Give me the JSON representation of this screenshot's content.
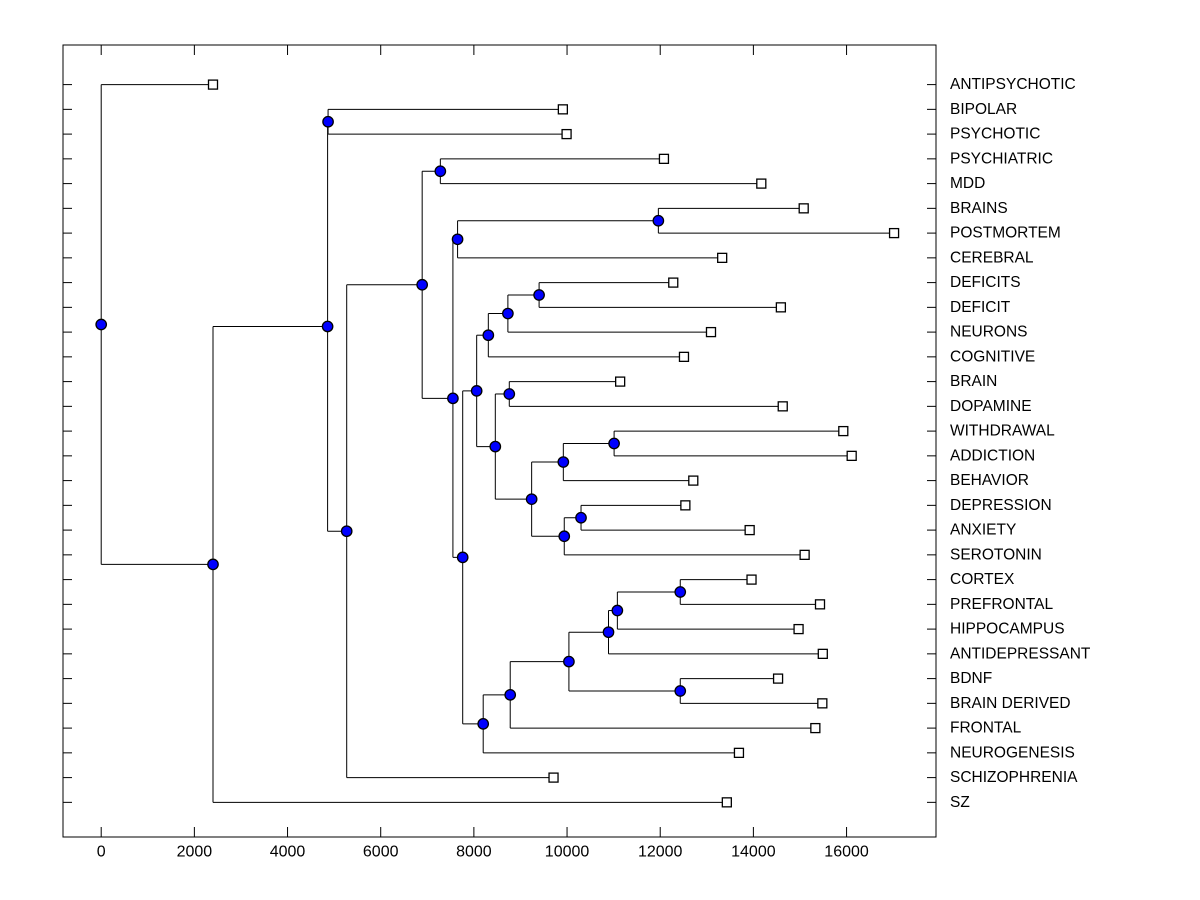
{
  "figure": {
    "background": "#ffffff",
    "title": ""
  },
  "chart_data": {
    "type": "dendrogram",
    "orientation": "horizontal_left_root_right_labels",
    "title": "",
    "xlabel": "",
    "ylabel": "",
    "grid": false,
    "x_axis": {
      "ticks": [
        0,
        2000,
        4000,
        6000,
        8000,
        10000,
        12000,
        14000,
        16000
      ],
      "tick_labels": [
        "0",
        "2000",
        "4000",
        "6000",
        "8000",
        "10000",
        "12000",
        "14000",
        "16000"
      ],
      "xlim": [
        -820,
        17920
      ]
    },
    "y_axis": {
      "ylim": [
        -0.6,
        31.4
      ],
      "leaf_row_count": 30,
      "row_ticks_both_sides": true
    },
    "leaves": [
      {
        "label": "ANTIPSYCHOTIC",
        "x": 2400
      },
      {
        "label": "BIPOLAR",
        "x": 9910
      },
      {
        "label": "PSYCHOTIC",
        "x": 9990
      },
      {
        "label": "PSYCHIATRIC",
        "x": 12080
      },
      {
        "label": "MDD",
        "x": 14170
      },
      {
        "label": "BRAINS",
        "x": 15080
      },
      {
        "label": "POSTMORTEM",
        "x": 17020
      },
      {
        "label": "CEREBRAL",
        "x": 13330
      },
      {
        "label": "DEFICITS",
        "x": 12280
      },
      {
        "label": "DEFICIT",
        "x": 14590
      },
      {
        "label": "NEURONS",
        "x": 13090
      },
      {
        "label": "COGNITIVE",
        "x": 12510
      },
      {
        "label": "BRAIN",
        "x": 11140
      },
      {
        "label": "DOPAMINE",
        "x": 14630
      },
      {
        "label": "WITHDRAWAL",
        "x": 15930
      },
      {
        "label": "ADDICTION",
        "x": 16110
      },
      {
        "label": "BEHAVIOR",
        "x": 12710
      },
      {
        "label": "DEPRESSION",
        "x": 12540
      },
      {
        "label": "ANXIETY",
        "x": 13920
      },
      {
        "label": "SEROTONIN",
        "x": 15100
      },
      {
        "label": "CORTEX",
        "x": 13960
      },
      {
        "label": "PREFRONTAL",
        "x": 15430
      },
      {
        "label": "HIPPOCAMPUS",
        "x": 14970
      },
      {
        "label": "ANTIDEPRESSANT",
        "x": 15490
      },
      {
        "label": "BDNF",
        "x": 14530
      },
      {
        "label": "BRAIN DERIVED",
        "x": 15480
      },
      {
        "label": "FRONTAL",
        "x": 15330
      },
      {
        "label": "NEUROGENESIS",
        "x": 13690
      },
      {
        "label": "SCHIZOPHRENIA",
        "x": 9710
      },
      {
        "label": "SZ",
        "x": 13430
      }
    ],
    "branches": [
      {
        "id": "root",
        "x": 0,
        "children": [
          "ANTIPSYCHOTIC",
          "@g"
        ]
      },
      {
        "id": "g",
        "x": 2400,
        "children": [
          "@b",
          "SZ"
        ]
      },
      {
        "id": "b",
        "x": 4860,
        "children": [
          "@a",
          "@c"
        ]
      },
      {
        "id": "a",
        "x": 4870,
        "children": [
          "BIPOLAR",
          "PSYCHOTIC"
        ]
      },
      {
        "id": "c",
        "x": 5270,
        "children": [
          "@f",
          "SCHIZOPHRENIA"
        ]
      },
      {
        "id": "f",
        "x": 6890,
        "children": [
          "@h",
          "@i"
        ]
      },
      {
        "id": "h",
        "x": 7280,
        "children": [
          "PSYCHIATRIC",
          "MDD"
        ]
      },
      {
        "id": "i",
        "x": 7550,
        "children": [
          "@d",
          "@q"
        ]
      },
      {
        "id": "d",
        "x": 7650,
        "children": [
          "@e",
          "CEREBRAL"
        ]
      },
      {
        "id": "e",
        "x": 11960,
        "children": [
          "BRAINS",
          "POSTMORTEM"
        ]
      },
      {
        "id": "q",
        "x": 7760,
        "children": [
          "@m",
          "@v"
        ]
      },
      {
        "id": "m",
        "x": 8060,
        "children": [
          "@l",
          "@o"
        ]
      },
      {
        "id": "l",
        "x": 8310,
        "children": [
          "@k",
          "COGNITIVE"
        ]
      },
      {
        "id": "k",
        "x": 8730,
        "children": [
          "@j",
          "NEURONS"
        ]
      },
      {
        "id": "j",
        "x": 9400,
        "children": [
          "DEFICITS",
          "DEFICIT"
        ]
      },
      {
        "id": "o",
        "x": 8460,
        "children": [
          "@n",
          "@p"
        ]
      },
      {
        "id": "n",
        "x": 8760,
        "children": [
          "BRAIN",
          "DOPAMINE"
        ]
      },
      {
        "id": "p",
        "x": 9240,
        "children": [
          "@r",
          "@u"
        ]
      },
      {
        "id": "r",
        "x": 9920,
        "children": [
          "@s",
          "BEHAVIOR"
        ]
      },
      {
        "id": "s",
        "x": 11010,
        "children": [
          "WITHDRAWAL",
          "ADDICTION"
        ]
      },
      {
        "id": "u",
        "x": 9940,
        "children": [
          "@t",
          "SEROTONIN"
        ]
      },
      {
        "id": "t",
        "x": 10300,
        "children": [
          "DEPRESSION",
          "ANXIETY"
        ]
      },
      {
        "id": "v",
        "x": 8200,
        "children": [
          "@ab",
          "NEUROGENESIS"
        ]
      },
      {
        "id": "ab",
        "x": 8780,
        "children": [
          "@z",
          "FRONTAL"
        ]
      },
      {
        "id": "z",
        "x": 10040,
        "children": [
          "@y",
          "@aa"
        ]
      },
      {
        "id": "y",
        "x": 10890,
        "children": [
          "@x",
          "ANTIDEPRESSANT"
        ]
      },
      {
        "id": "x",
        "x": 11080,
        "children": [
          "@w",
          "HIPPOCAMPUS"
        ]
      },
      {
        "id": "w",
        "x": 12430,
        "children": [
          "CORTEX",
          "PREFRONTAL"
        ]
      },
      {
        "id": "aa",
        "x": 12430,
        "children": [
          "BDNF",
          "BRAIN DERIVED"
        ]
      }
    ],
    "style": {
      "line_color": "#000000",
      "axis_color": "#000000",
      "branch_marker_fill": "#0000ff",
      "branch_marker_edge": "#000000",
      "leaf_marker_fill": "#ffffff",
      "leaf_marker_edge": "#000000",
      "label_color": "#000000"
    },
    "legend": null
  }
}
